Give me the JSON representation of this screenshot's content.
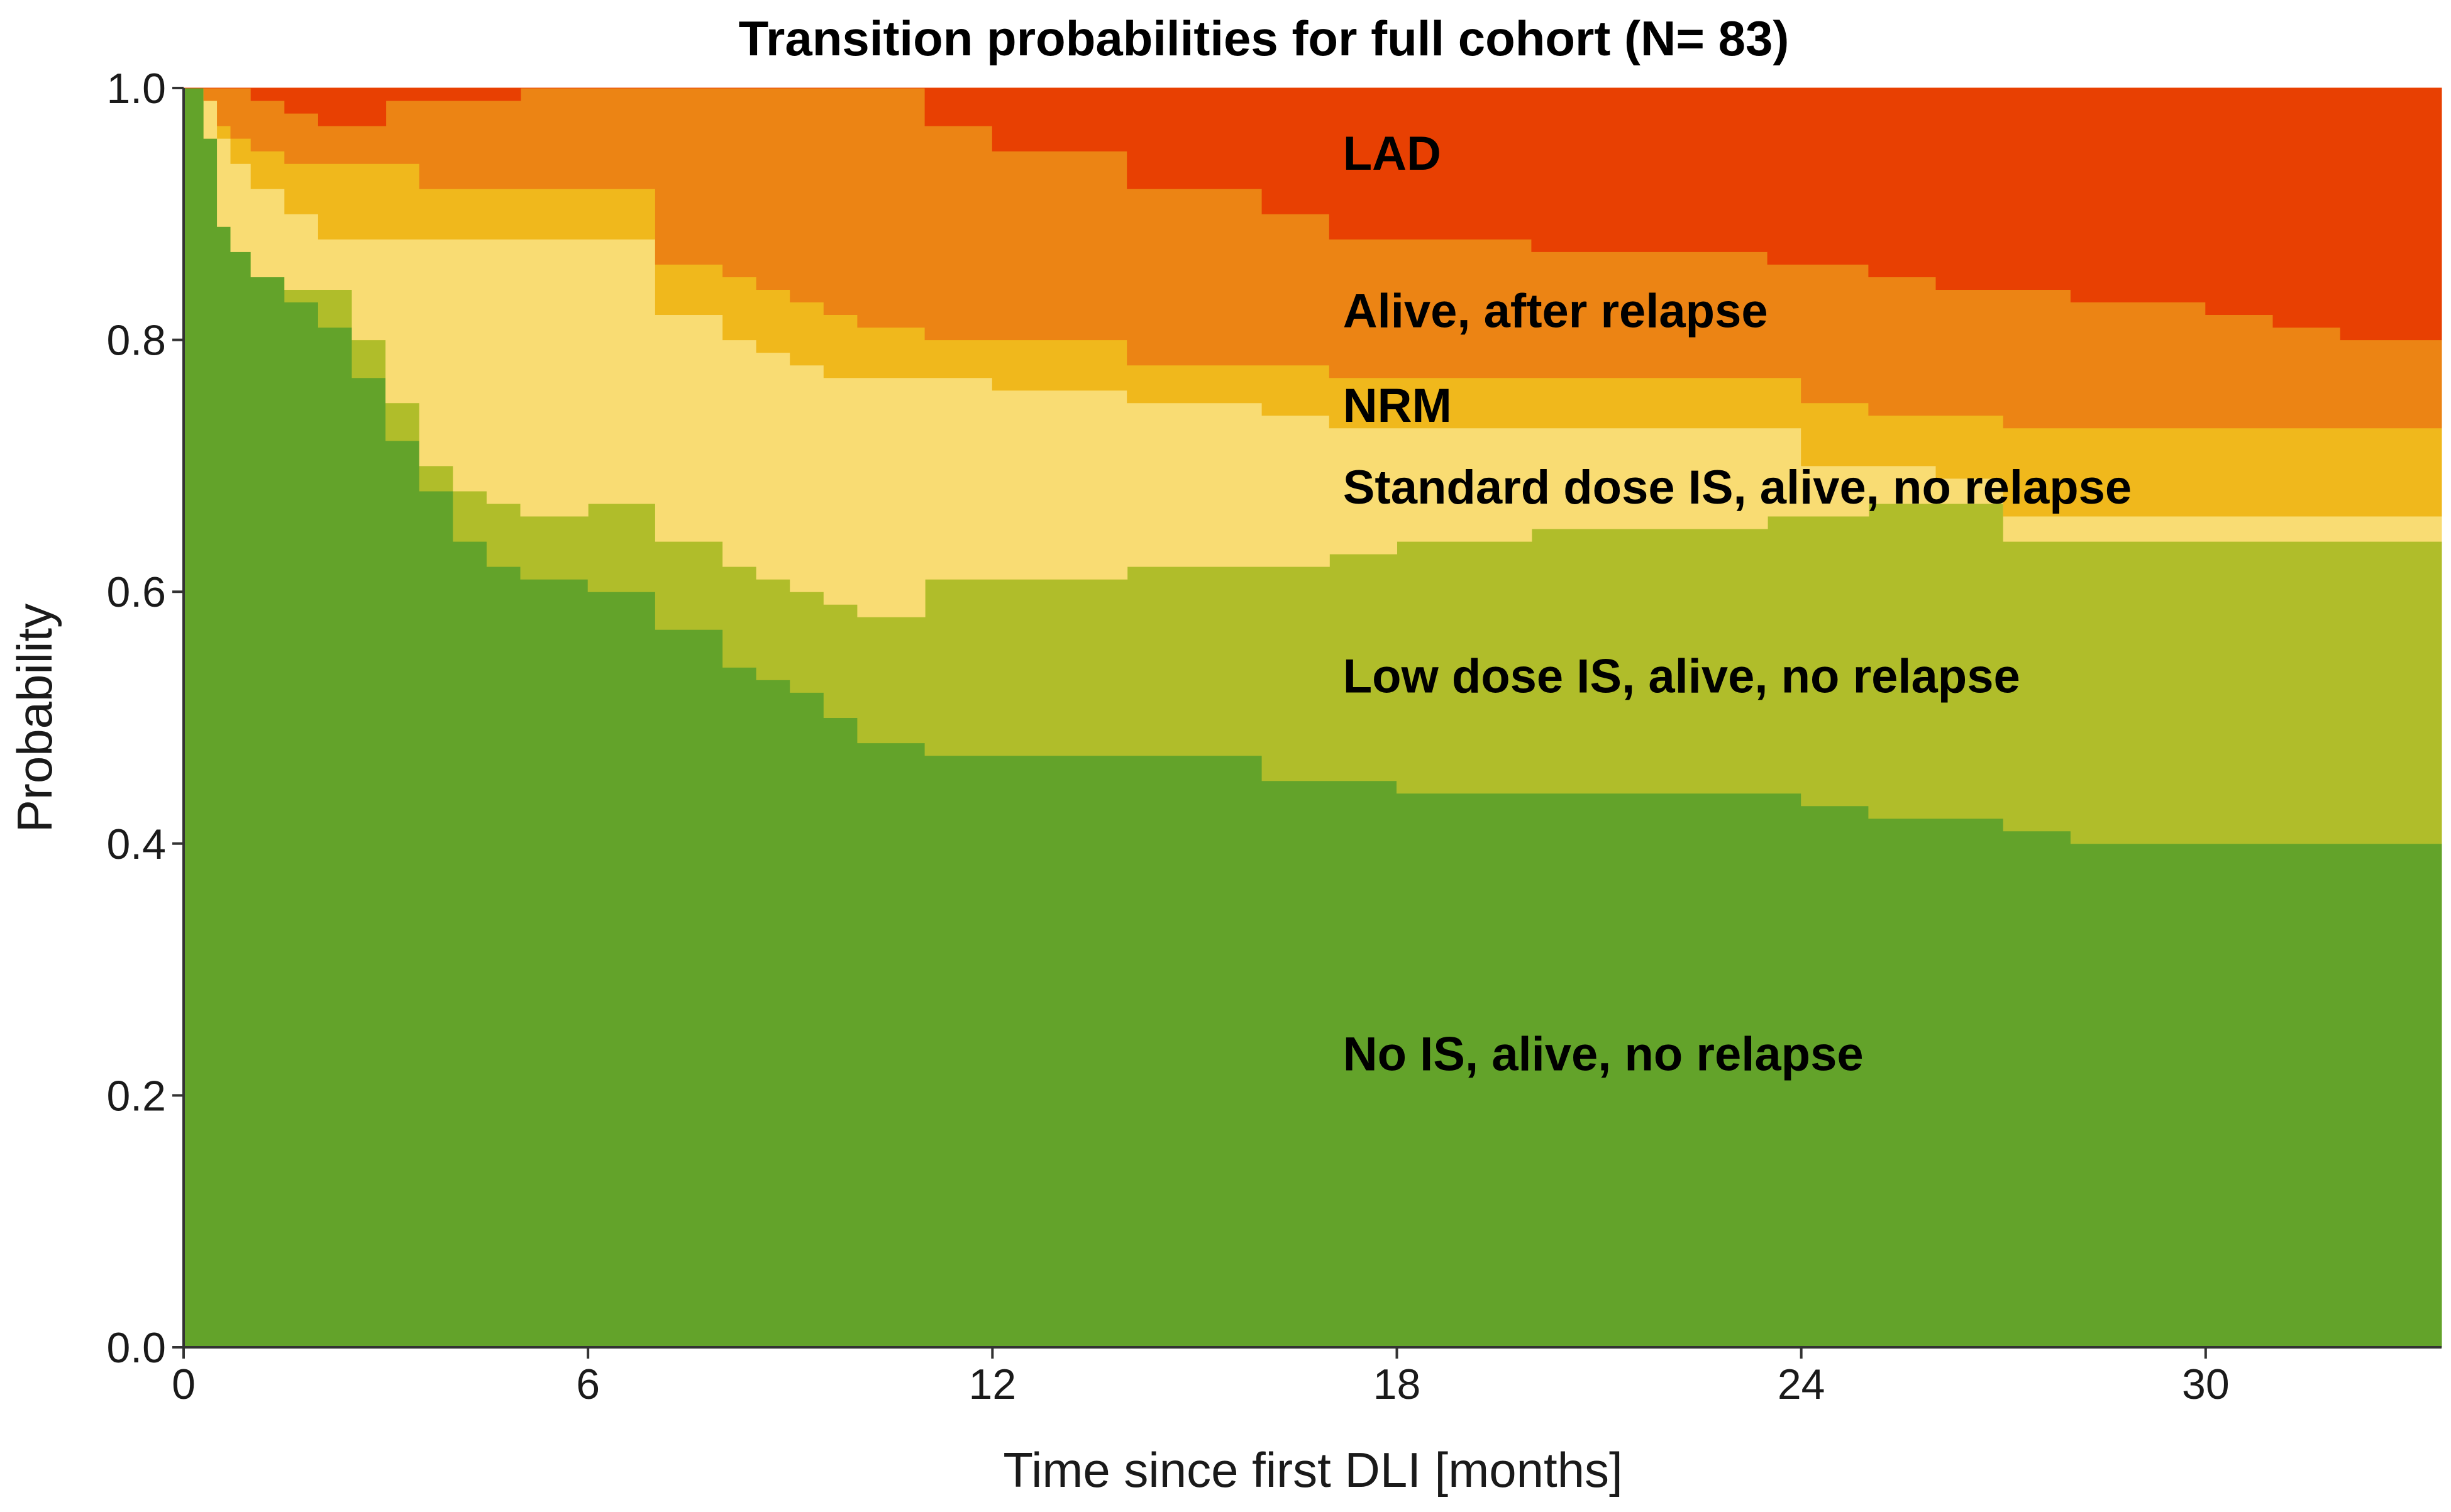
{
  "chart_data": {
    "type": "area",
    "stacking": "cumulative",
    "title": "Transition probabilities for full cohort (N= 83)",
    "xlabel": "Time since first DLI [months]",
    "ylabel": "Probability",
    "xlim": [
      0,
      33.5
    ],
    "ylim": [
      0,
      1
    ],
    "xticks": [
      0,
      6,
      12,
      18,
      24,
      30
    ],
    "yticks": [
      0.0,
      0.2,
      0.4,
      0.6,
      0.8,
      1.0
    ],
    "xtick_labels": [
      "0",
      "6",
      "12",
      "18",
      "24",
      "30"
    ],
    "ytick_labels": [
      "0.0",
      "0.2",
      "0.4",
      "0.6",
      "0.8",
      "1.0"
    ],
    "x": [
      0,
      0.3,
      0.5,
      0.7,
      1.0,
      1.5,
      2.0,
      2.5,
      3.0,
      3.5,
      4.0,
      4.5,
      5.0,
      6.0,
      7.0,
      8.0,
      8.5,
      9.0,
      9.5,
      10.0,
      11.0,
      12.0,
      14.0,
      16.0,
      17.0,
      18.0,
      20.0,
      22.0,
      23.5,
      24.0,
      25.0,
      26.0,
      27.0,
      28.0,
      30.0,
      31.0,
      32.0,
      33.5
    ],
    "series": [
      {
        "name": "No IS, alive, no relapse",
        "color": "#63a32a",
        "upper": [
          1.0,
          0.96,
          0.89,
          0.87,
          0.85,
          0.83,
          0.81,
          0.77,
          0.72,
          0.68,
          0.64,
          0.62,
          0.61,
          0.6,
          0.57,
          0.54,
          0.53,
          0.52,
          0.5,
          0.48,
          0.47,
          0.47,
          0.47,
          0.45,
          0.45,
          0.44,
          0.44,
          0.44,
          0.44,
          0.43,
          0.42,
          0.42,
          0.41,
          0.4,
          0.4,
          0.4,
          0.4,
          0.4
        ]
      },
      {
        "name": "Low dose IS, alive, no relapse",
        "color": "#b0bd2a",
        "upper": [
          1.0,
          0.96,
          0.89,
          0.87,
          0.85,
          0.84,
          0.84,
          0.8,
          0.75,
          0.7,
          0.68,
          0.67,
          0.66,
          0.67,
          0.64,
          0.62,
          0.61,
          0.6,
          0.59,
          0.58,
          0.61,
          0.61,
          0.62,
          0.62,
          0.63,
          0.64,
          0.65,
          0.65,
          0.66,
          0.66,
          0.67,
          0.67,
          0.64,
          0.64,
          0.64,
          0.64,
          0.64,
          0.65
        ]
      },
      {
        "name": "Standard dose IS, alive, no relapse",
        "color": "#f9dc73",
        "upper": [
          1.0,
          0.99,
          0.96,
          0.94,
          0.92,
          0.9,
          0.88,
          0.88,
          0.88,
          0.88,
          0.88,
          0.88,
          0.88,
          0.88,
          0.82,
          0.8,
          0.79,
          0.78,
          0.77,
          0.77,
          0.77,
          0.76,
          0.75,
          0.74,
          0.73,
          0.73,
          0.73,
          0.73,
          0.73,
          0.7,
          0.7,
          0.69,
          0.66,
          0.66,
          0.66,
          0.66,
          0.66,
          0.66
        ]
      },
      {
        "name": "NRM",
        "color": "#f0b81c",
        "upper": [
          1.0,
          0.99,
          0.97,
          0.96,
          0.95,
          0.94,
          0.94,
          0.94,
          0.94,
          0.92,
          0.92,
          0.92,
          0.92,
          0.92,
          0.86,
          0.85,
          0.84,
          0.83,
          0.82,
          0.81,
          0.8,
          0.8,
          0.78,
          0.78,
          0.77,
          0.77,
          0.77,
          0.77,
          0.77,
          0.75,
          0.74,
          0.74,
          0.73,
          0.73,
          0.73,
          0.73,
          0.73,
          0.73
        ]
      },
      {
        "name": "Alive, after relapse",
        "color": "#ec8414",
        "upper": [
          1.0,
          1.0,
          1.0,
          1.0,
          0.99,
          0.98,
          0.97,
          0.97,
          0.99,
          0.99,
          0.99,
          0.99,
          1.0,
          1.0,
          1.0,
          1.0,
          1.0,
          1.0,
          1.0,
          1.0,
          0.97,
          0.95,
          0.92,
          0.9,
          0.88,
          0.88,
          0.87,
          0.87,
          0.86,
          0.86,
          0.85,
          0.84,
          0.84,
          0.83,
          0.82,
          0.81,
          0.8,
          0.8
        ]
      },
      {
        "name": "LAD",
        "color": "#e84002",
        "upper": [
          1.0,
          1.0,
          1.0,
          1.0,
          1.0,
          1.0,
          1.0,
          1.0,
          1.0,
          1.0,
          1.0,
          1.0,
          1.0,
          1.0,
          1.0,
          1.0,
          1.0,
          1.0,
          1.0,
          1.0,
          1.0,
          1.0,
          1.0,
          1.0,
          1.0,
          1.0,
          1.0,
          1.0,
          1.0,
          1.0,
          1.0,
          1.0,
          1.0,
          1.0,
          1.0,
          1.0,
          1.0,
          1.0
        ]
      }
    ],
    "annotations": [
      {
        "text": "LAD",
        "x": 17.2,
        "y": 0.945
      },
      {
        "text": "Alive, after relapse",
        "x": 17.2,
        "y": 0.82
      },
      {
        "text": "NRM",
        "x": 17.2,
        "y": 0.745
      },
      {
        "text": "Standard dose IS, alive, no relapse",
        "x": 17.2,
        "y": 0.68
      },
      {
        "text": "Low dose IS, alive, no relapse",
        "x": 17.2,
        "y": 0.53
      },
      {
        "text": "No IS, alive, no relapse",
        "x": 17.2,
        "y": 0.23
      }
    ],
    "grid": false,
    "legend": "none"
  }
}
